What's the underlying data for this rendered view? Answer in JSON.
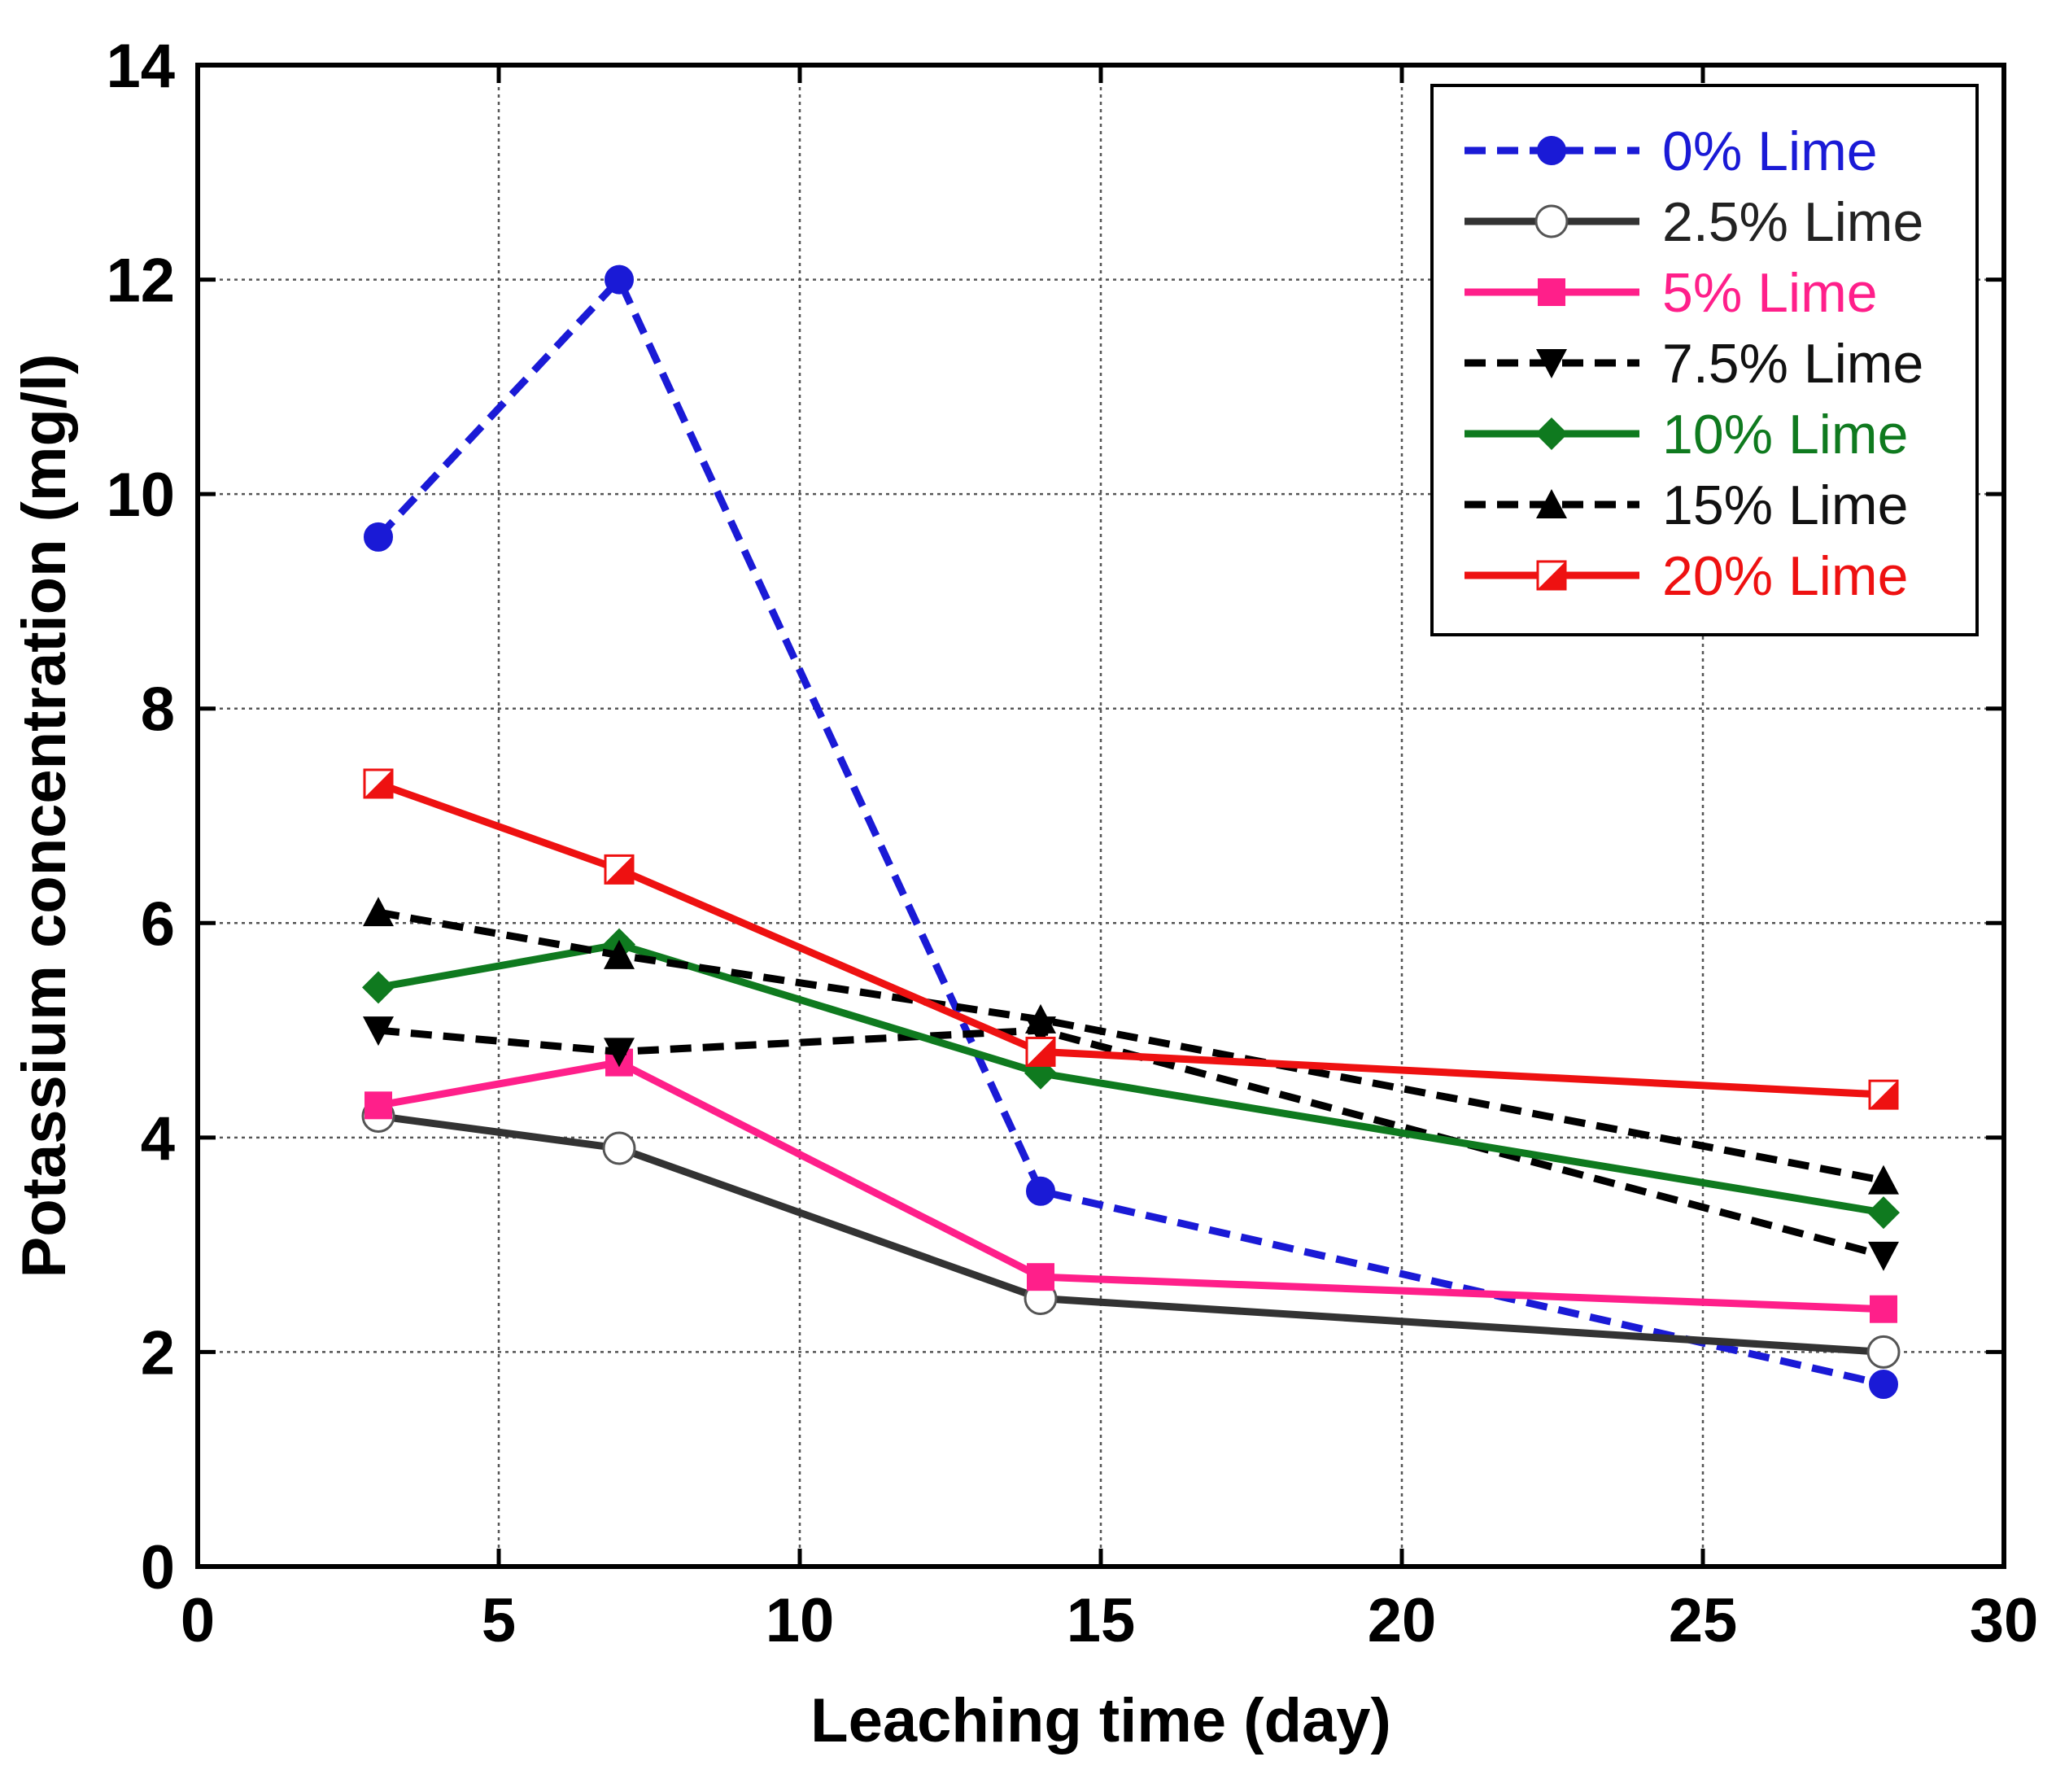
{
  "chart_data": {
    "type": "line",
    "xlabel": "Leaching time (day)",
    "ylabel": "Potassium concentration (mg/l)",
    "xlim": [
      0,
      30
    ],
    "ylim": [
      0,
      14
    ],
    "x_ticks": [
      "0",
      "5",
      "10",
      "15",
      "20",
      "25",
      "30"
    ],
    "y_ticks": [
      "0",
      "2",
      "4",
      "6",
      "8",
      "10",
      "12",
      "14"
    ],
    "grid": true,
    "legend_position": "top-right",
    "x": [
      3,
      7,
      14,
      28
    ],
    "series": [
      {
        "name": "0% Lime",
        "values": [
          9.6,
          12.0,
          3.5,
          1.7
        ],
        "color": "#1a1ad6",
        "dash": true,
        "marker": "circle-filled"
      },
      {
        "name": "2.5% Lime",
        "values": [
          4.2,
          3.9,
          2.5,
          2.0
        ],
        "color": "#333333",
        "dash": false,
        "marker": "circle-open"
      },
      {
        "name": "5% Lime",
        "values": [
          4.3,
          4.7,
          2.7,
          2.4
        ],
        "color": "#ff1f8a",
        "dash": false,
        "marker": "square"
      },
      {
        "name": "7.5% Lime",
        "values": [
          5.0,
          4.8,
          5.0,
          2.9
        ],
        "color": "#000000",
        "dash": true,
        "marker": "triangle-down"
      },
      {
        "name": "10% Lime",
        "values": [
          5.4,
          5.8,
          4.6,
          3.3
        ],
        "color": "#0f7a1f",
        "dash": false,
        "marker": "diamond"
      },
      {
        "name": "15% Lime",
        "values": [
          6.1,
          5.7,
          5.1,
          3.6
        ],
        "color": "#000000",
        "dash": true,
        "marker": "triangle-up"
      },
      {
        "name": "20% Lime",
        "values": [
          7.3,
          6.5,
          4.8,
          4.4
        ],
        "color": "#ee1111",
        "dash": false,
        "marker": "half-square"
      }
    ]
  }
}
